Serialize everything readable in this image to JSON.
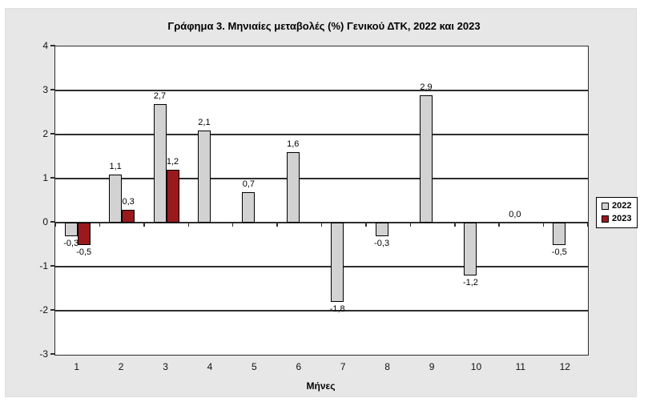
{
  "chart_data": {
    "type": "bar",
    "title": "Γράφημα 3. Μηνιαίες μεταβολές (%) Γενικού ΔΤΚ, 2022 και 2023",
    "xlabel": "Μήνες",
    "ylabel": "",
    "ylim": [
      -3,
      4
    ],
    "grid": true,
    "legend_position": "right-outside",
    "yticks": [
      "4",
      "3",
      "2",
      "1",
      "0",
      "-1",
      "-2",
      "-3"
    ],
    "ytick_values": [
      4,
      3,
      2,
      1,
      0,
      -1,
      -2,
      -3
    ],
    "categories": [
      "1",
      "2",
      "3",
      "4",
      "5",
      "6",
      "7",
      "8",
      "9",
      "10",
      "11",
      "12"
    ],
    "series": [
      {
        "name": "2022",
        "color": "#d2d2d2",
        "values": [
          -0.3,
          1.1,
          2.7,
          2.1,
          0.7,
          1.6,
          -1.8,
          -0.3,
          2.9,
          -1.2,
          0.0,
          -0.5
        ],
        "labels": [
          "-0,3",
          "1,1",
          "2,7",
          "2,1",
          "0,7",
          "1,6",
          "-1,8",
          "-0,3",
          "2,9",
          "-1,2",
          "0,0",
          "-0,5"
        ]
      },
      {
        "name": "2023",
        "color": "#9a191c",
        "values": [
          -0.5,
          0.3,
          1.2,
          null,
          null,
          null,
          null,
          null,
          null,
          null,
          null,
          null
        ],
        "labels": [
          "-0,5",
          "0,3",
          "1,2",
          null,
          null,
          null,
          null,
          null,
          null,
          null,
          null,
          null
        ]
      }
    ]
  },
  "colors": {
    "figure_background": "#e7e7e7",
    "plot_background": "#ffffff",
    "gridline": "#2e2e2e",
    "bar_border": "#000000",
    "series_2022": "#d2d2d2",
    "series_2023": "#9a191c"
  }
}
